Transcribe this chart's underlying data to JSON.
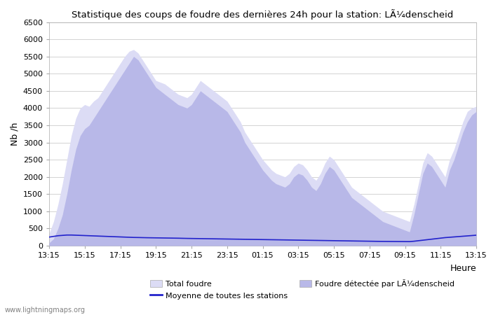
{
  "title": "Statistique des coups de foudre des dernières 24h pour la station: LÃ¼denscheid",
  "ylabel": "Nb /h",
  "ylim": [
    0,
    6500
  ],
  "yticks": [
    0,
    500,
    1000,
    1500,
    2000,
    2500,
    3000,
    3500,
    4000,
    4500,
    5000,
    5500,
    6000,
    6500
  ],
  "xtick_labels": [
    "13:15",
    "15:15",
    "17:15",
    "19:15",
    "21:15",
    "23:15",
    "01:15",
    "03:15",
    "05:15",
    "07:15",
    "09:15",
    "11:15",
    "13:15"
  ],
  "background_color": "#ffffff",
  "plot_bg_color": "#ffffff",
  "fill_color_total": "#dcdcf5",
  "fill_color_local": "#b8b8e8",
  "line_color": "#2222cc",
  "watermark": "www.lightningmaps.org",
  "legend_total": "Total foudre",
  "legend_moyenne": "Moyenne de toutes les stations",
  "legend_local": "Foudre détectée par LÃ¼denscheid",
  "heure_label": "Heure",
  "n_points": 97,
  "total_foudre": [
    350,
    700,
    1200,
    1800,
    2500,
    3200,
    3700,
    4000,
    4100,
    4050,
    4200,
    4300,
    4500,
    4700,
    4900,
    5100,
    5300,
    5500,
    5650,
    5700,
    5600,
    5400,
    5200,
    5000,
    4800,
    4750,
    4700,
    4600,
    4500,
    4400,
    4350,
    4300,
    4400,
    4600,
    4800,
    4700,
    4600,
    4500,
    4400,
    4300,
    4200,
    4000,
    3800,
    3600,
    3300,
    3100,
    2900,
    2700,
    2500,
    2350,
    2200,
    2100,
    2050,
    2000,
    2100,
    2300,
    2400,
    2350,
    2200,
    2000,
    1900,
    2100,
    2400,
    2600,
    2500,
    2300,
    2100,
    1900,
    1700,
    1600,
    1500,
    1400,
    1300,
    1200,
    1100,
    1000,
    950,
    900,
    850,
    800,
    750,
    700,
    1200,
    1800,
    2400,
    2700,
    2600,
    2400,
    2200,
    2000,
    2500,
    2800,
    3200,
    3600,
    3900,
    4000,
    4050
  ],
  "local_foudre": [
    80,
    200,
    500,
    900,
    1500,
    2200,
    2800,
    3200,
    3400,
    3500,
    3700,
    3900,
    4100,
    4300,
    4500,
    4700,
    4900,
    5100,
    5300,
    5500,
    5400,
    5200,
    5000,
    4800,
    4600,
    4500,
    4400,
    4300,
    4200,
    4100,
    4050,
    4000,
    4100,
    4300,
    4500,
    4400,
    4300,
    4200,
    4100,
    4000,
    3900,
    3700,
    3500,
    3300,
    3000,
    2800,
    2600,
    2400,
    2200,
    2050,
    1900,
    1800,
    1750,
    1700,
    1800,
    2000,
    2100,
    2050,
    1900,
    1700,
    1600,
    1800,
    2100,
    2300,
    2200,
    2000,
    1800,
    1600,
    1400,
    1300,
    1200,
    1100,
    1000,
    900,
    800,
    700,
    650,
    600,
    550,
    500,
    450,
    400,
    900,
    1500,
    2100,
    2400,
    2300,
    2100,
    1900,
    1700,
    2200,
    2500,
    2900,
    3300,
    3600,
    3800,
    3900
  ],
  "moyenne_line": [
    250,
    270,
    290,
    300,
    310,
    310,
    305,
    300,
    295,
    290,
    285,
    280,
    275,
    270,
    265,
    260,
    255,
    250,
    245,
    240,
    238,
    235,
    232,
    230,
    228,
    226,
    224,
    222,
    220,
    218,
    215,
    212,
    210,
    208,
    206,
    204,
    202,
    200,
    198,
    196,
    194,
    192,
    190,
    188,
    186,
    184,
    182,
    180,
    178,
    176,
    174,
    172,
    170,
    168,
    166,
    164,
    162,
    160,
    158,
    156,
    154,
    152,
    150,
    148,
    146,
    144,
    142,
    140,
    138,
    136,
    134,
    132,
    130,
    128,
    126,
    125,
    124,
    123,
    122,
    121,
    120,
    119,
    130,
    145,
    160,
    175,
    190,
    205,
    220,
    235,
    245,
    255,
    265,
    275,
    285,
    295,
    305
  ]
}
